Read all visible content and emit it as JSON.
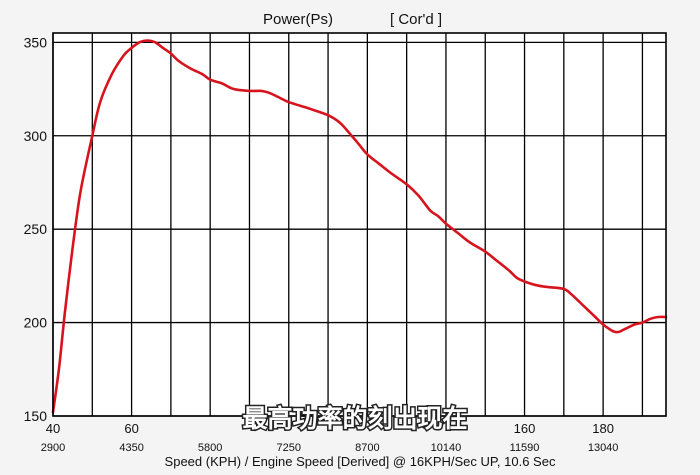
{
  "chart_data": {
    "type": "line",
    "title": "Power(Ps)",
    "title_suffix": "[ Cor'd ]",
    "xlabel": "Speed (KPH) / Engine Speed [Derived] @ 16KPH/Sec UP, 10.6 Sec",
    "ylabel": "",
    "xlim": [
      40,
      196
    ],
    "ylim": [
      150,
      355
    ],
    "y_ticks": [
      150,
      200,
      250,
      300,
      350
    ],
    "x_speed_ticks": [
      {
        "value": 40,
        "label": "40"
      },
      {
        "value": 60,
        "label": "60"
      },
      {
        "value": 160,
        "label": "160"
      },
      {
        "value": 180,
        "label": "180"
      }
    ],
    "x_rpm_ticks": [
      {
        "value": 40,
        "label": "2900"
      },
      {
        "value": 60,
        "label": "4350"
      },
      {
        "value": 80,
        "label": "5800"
      },
      {
        "value": 100,
        "label": "7250"
      },
      {
        "value": 120,
        "label": "8700"
      },
      {
        "value": 140,
        "label": "10140"
      },
      {
        "value": 160,
        "label": "11590"
      },
      {
        "value": 180,
        "label": "13040"
      }
    ],
    "grid_x": [
      40,
      50,
      60,
      70,
      80,
      90,
      100,
      110,
      120,
      130,
      140,
      150,
      160,
      170,
      180,
      190
    ],
    "grid_y": [
      150,
      200,
      250,
      300,
      350
    ],
    "grid": true,
    "line_color": "#d7141e",
    "series": [
      {
        "x": [
          40,
          41.5,
          43,
          45,
          47,
          50,
          52,
          55,
          58,
          60,
          62,
          64,
          66,
          68,
          70,
          72,
          75,
          78,
          80,
          83,
          86,
          90,
          93,
          95,
          98,
          100,
          103,
          106,
          110,
          113,
          116,
          118,
          120,
          123,
          126,
          130,
          133,
          136,
          138,
          140,
          143,
          146,
          150,
          153,
          156,
          158,
          160,
          163,
          166,
          170,
          172,
          174,
          175,
          176,
          178,
          180,
          182,
          183,
          184,
          185,
          186,
          188,
          190,
          192,
          194,
          196
        ],
        "y": [
          152,
          175,
          205,
          240,
          270,
          300,
          318,
          333,
          343,
          347,
          350,
          351,
          350,
          347,
          344,
          340,
          336,
          333,
          330,
          328,
          325,
          324,
          324,
          323,
          320,
          318,
          316,
          314,
          311,
          307,
          300,
          295,
          290,
          285,
          280,
          274,
          268,
          260,
          257,
          253,
          248,
          243,
          238,
          233,
          228,
          224,
          222,
          220,
          219,
          218,
          215,
          211,
          209,
          207,
          203,
          199,
          196,
          195,
          195,
          196,
          197,
          199,
          200,
          202,
          203,
          203
        ]
      }
    ]
  },
  "overlay": {
    "subtitle": "最高功率的刻出现在"
  }
}
